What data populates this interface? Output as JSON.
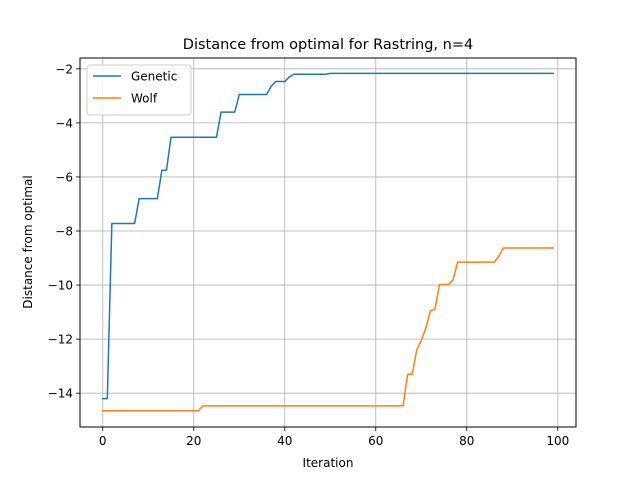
{
  "chart_data": {
    "type": "line",
    "title": "Distance from optimal for Rastring, n=4",
    "xlabel": "Iteration",
    "ylabel": "Distance from optimal",
    "xlim": [
      -5,
      104
    ],
    "ylim": [
      -15.25,
      -1.6
    ],
    "x_ticks": [
      0,
      20,
      40,
      60,
      80,
      100
    ],
    "y_ticks": [
      -14,
      -12,
      -10,
      -8,
      -6,
      -4,
      -2
    ],
    "grid": true,
    "legend": "top-left",
    "series": [
      {
        "name": "Genetic",
        "color": "#1f77b4",
        "points": [
          [
            0,
            -14.2
          ],
          [
            1,
            -14.2
          ],
          [
            2,
            -7.72
          ],
          [
            7,
            -7.72
          ],
          [
            8,
            -6.8
          ],
          [
            12,
            -6.8
          ],
          [
            13,
            -5.75
          ],
          [
            14,
            -5.75
          ],
          [
            15,
            -4.53
          ],
          [
            25,
            -4.53
          ],
          [
            26,
            -3.6
          ],
          [
            29,
            -3.6
          ],
          [
            30,
            -2.95
          ],
          [
            36,
            -2.95
          ],
          [
            37,
            -2.65
          ],
          [
            38,
            -2.47
          ],
          [
            40,
            -2.47
          ],
          [
            41,
            -2.3
          ],
          [
            42,
            -2.2
          ],
          [
            49,
            -2.2
          ],
          [
            50,
            -2.17
          ],
          [
            99,
            -2.17
          ]
        ]
      },
      {
        "name": "Wolf",
        "color": "#ff7f0e",
        "points": [
          [
            0,
            -14.65
          ],
          [
            21,
            -14.65
          ],
          [
            22,
            -14.47
          ],
          [
            66,
            -14.47
          ],
          [
            67,
            -13.3
          ],
          [
            68,
            -13.3
          ],
          [
            69,
            -12.4
          ],
          [
            70,
            -12.05
          ],
          [
            71,
            -11.6
          ],
          [
            72,
            -10.95
          ],
          [
            73,
            -10.9
          ],
          [
            74,
            -9.98
          ],
          [
            76,
            -9.98
          ],
          [
            77,
            -9.8
          ],
          [
            78,
            -9.15
          ],
          [
            86,
            -9.15
          ],
          [
            87,
            -8.95
          ],
          [
            88,
            -8.63
          ],
          [
            99,
            -8.63
          ]
        ]
      }
    ]
  }
}
